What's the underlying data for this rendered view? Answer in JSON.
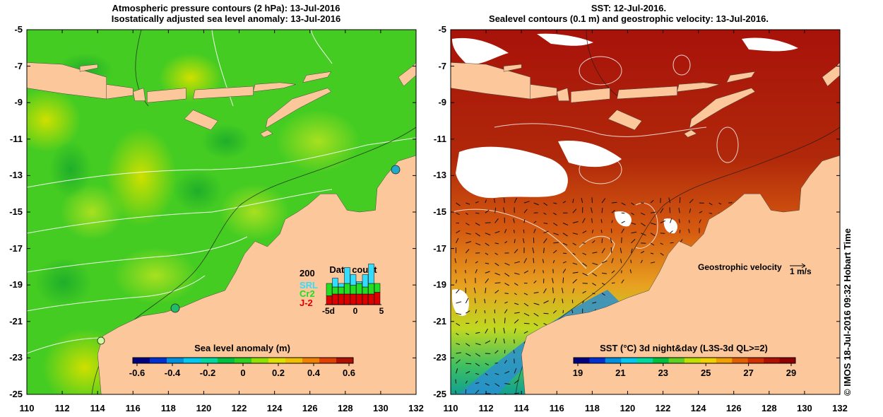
{
  "left_panel": {
    "title_line1": "Atmospheric pressure contours (2 hPa): 13-Jul-2016",
    "title_line2": "Isostatically adjusted sea level anomaly: 13-Jul-2016",
    "colorbar": {
      "label": "Sea level anomaly (m)",
      "ticks": [
        "-0.6",
        "-0.4",
        "-0.2",
        "0",
        "0.2",
        "0.4",
        "0.6"
      ],
      "colors": [
        "#000080",
        "#0030d0",
        "#0090e0",
        "#00c8f0",
        "#00d8a0",
        "#00c040",
        "#30d020",
        "#90e000",
        "#e0e000",
        "#f0c000",
        "#f08000",
        "#e04000",
        "#b01000"
      ]
    },
    "data_count": {
      "title": "Data count",
      "max_label": "200",
      "legend": [
        {
          "name": "SRL",
          "color": "#33ddff"
        },
        {
          "name": "Cr2",
          "color": "#22dd22"
        },
        {
          "name": "J-2",
          "color": "#dd0000"
        }
      ],
      "xticks": [
        "-5d",
        "0",
        "5"
      ],
      "bars": [
        {
          "srl": 0.0,
          "cr2": 0.35,
          "j2": 0.25
        },
        {
          "srl": 0.25,
          "cr2": 0.2,
          "j2": 0.3
        },
        {
          "srl": 0.1,
          "cr2": 0.2,
          "j2": 0.3
        },
        {
          "srl": 0.45,
          "cr2": 0.3,
          "j2": 0.3
        },
        {
          "srl": 0.3,
          "cr2": 0.25,
          "j2": 0.3
        },
        {
          "srl": 0.05,
          "cr2": 0.3,
          "j2": 0.3
        },
        {
          "srl": 0.35,
          "cr2": 0.2,
          "j2": 0.3
        },
        {
          "srl": 0.55,
          "cr2": 0.3,
          "j2": 0.3
        },
        {
          "srl": 0.0,
          "cr2": 0.25,
          "j2": 0.35
        }
      ]
    }
  },
  "right_panel": {
    "title_line1": "SST: 12-Jul-2016.",
    "title_line2": "Sealevel contours (0.1 m) and geostrophic velocity: 13-Jul-2016.",
    "colorbar": {
      "label": "SST (°C) 3d night&day (L3S-3d QL>=2)",
      "ticks": [
        "19",
        "21",
        "23",
        "25",
        "27",
        "29"
      ],
      "colors": [
        "#000080",
        "#0030d0",
        "#0090e0",
        "#00c8f0",
        "#00d8a0",
        "#00c040",
        "#60d020",
        "#c0e000",
        "#f0d000",
        "#f0a000",
        "#e06000",
        "#d03000",
        "#b01000",
        "#900000"
      ]
    },
    "velocity_label": "Geostrophic velocity",
    "velocity_scale": "1 m/s"
  },
  "axes": {
    "lat_ticks": [
      "-5",
      "-7",
      "-9",
      "-11",
      "-13",
      "-15",
      "-17",
      "-19",
      "-21",
      "-23",
      "-25"
    ],
    "lon_ticks": [
      "110",
      "112",
      "114",
      "116",
      "118",
      "120",
      "122",
      "124",
      "126",
      "128",
      "130",
      "132"
    ],
    "lon_range": [
      110,
      132
    ],
    "lat_range": [
      -25,
      -5
    ]
  },
  "colors": {
    "land": "#fbc79b",
    "left_sea": "#44cc22",
    "right_sea": "#a51a0a"
  },
  "credit": "© IMOS 18-Jul-2016 09:32 Hobart Time"
}
